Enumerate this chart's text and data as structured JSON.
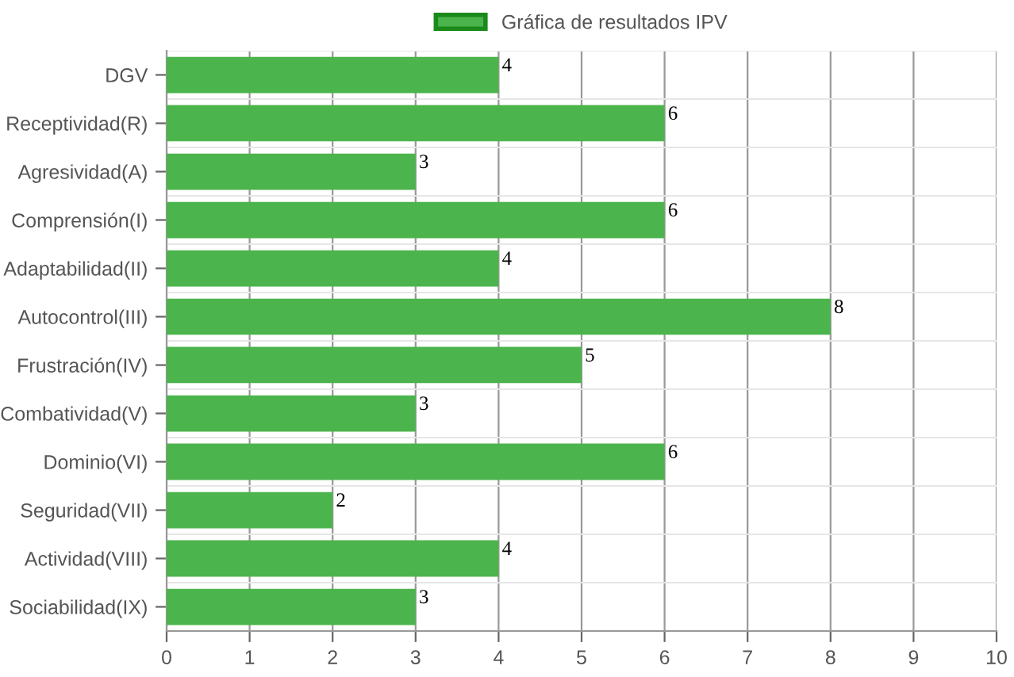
{
  "chart_data": {
    "type": "bar",
    "orientation": "horizontal",
    "categories": [
      "DGV",
      "Receptividad(R)",
      "Agresividad(A)",
      "Comprensión(I)",
      "Adaptabilidad(II)",
      "Autocontrol(III)",
      "Frustración(IV)",
      "Combatividad(V)",
      "Dominio(VI)",
      "Seguridad(VII)",
      "Actividad(VIII)",
      "Sociabilidad(IX)"
    ],
    "series": [
      {
        "name": "Gráfica de resultados IPV",
        "color": "#4cb44c",
        "values": [
          4,
          6,
          3,
          6,
          4,
          8,
          5,
          3,
          6,
          2,
          4,
          3
        ]
      }
    ],
    "xlim": [
      0,
      10
    ],
    "xticks": [
      0,
      1,
      2,
      3,
      4,
      5,
      6,
      7,
      8,
      9,
      10
    ],
    "grid": true,
    "legend": "top",
    "data_labels": true
  }
}
